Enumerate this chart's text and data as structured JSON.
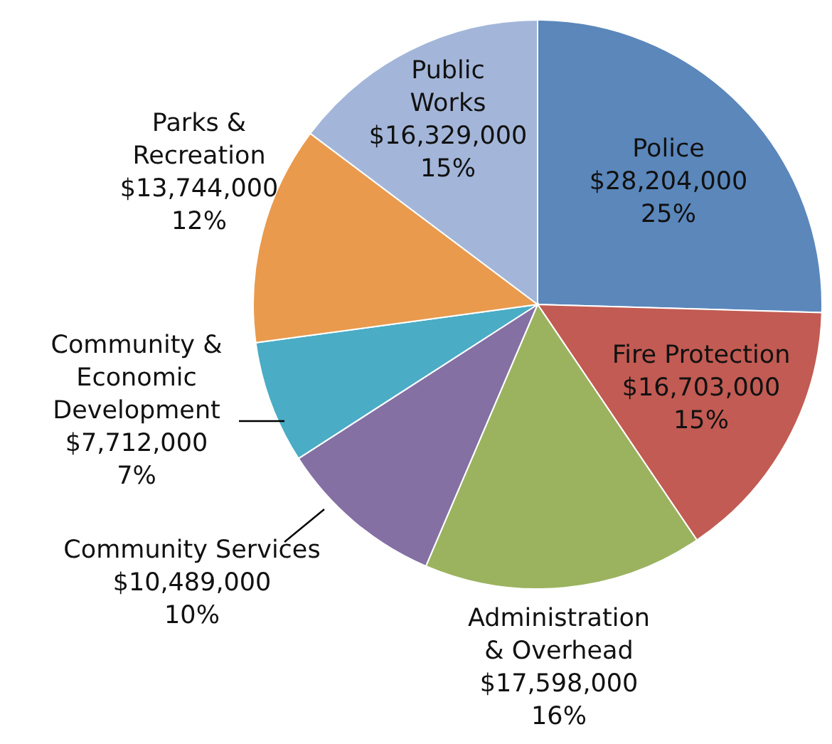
{
  "chart_data": {
    "type": "pie",
    "categories": [
      "Police",
      "Fire Protection",
      "Administration & Overhead",
      "Community Services",
      "Community & Economic Development",
      "Parks & Recreation",
      "Public Works"
    ],
    "values": [
      28204000,
      16703000,
      17598000,
      10489000,
      7712000,
      13744000,
      16329000
    ],
    "value_labels": [
      "$28,204,000\n25%",
      "$16,703,000\n15%",
      "$17,598,000\n16%",
      "$10,489,000\n10%",
      "$7,712,000\n7%",
      "$13,744,000\n12%",
      "$16,329,000\n15%"
    ],
    "colors": [
      "#5b87bb",
      "#c25b53",
      "#9bb35f",
      "#8470a3",
      "#4aacc5",
      "#e99a4d",
      "#a3b6d9"
    ]
  }
}
